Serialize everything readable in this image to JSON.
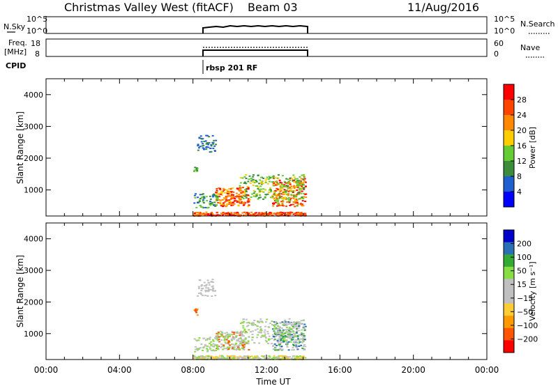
{
  "header": {
    "title": "Christmas Valley West (fitACF)",
    "beam": "Beam 03",
    "date": "11/Aug/2016"
  },
  "noise_panel": {
    "left_label": "N.Sky",
    "right_label": "N.Search",
    "ticks_left": [
      "10^5",
      "10^0"
    ],
    "ticks_right": [
      "10^5",
      "10^0"
    ]
  },
  "freq_panel": {
    "left_label_line1": "Freq.",
    "left_label_line2": "[MHz]",
    "right_label": "Nave",
    "ticks_left": [
      "18",
      "8"
    ],
    "ticks_right": [
      "60",
      "0"
    ]
  },
  "cpid": {
    "label": "CPID",
    "program": "rbsp 201 RF"
  },
  "colors": {
    "power_scale": [
      "#0000ff",
      "#1f5fd0",
      "#3c8c3c",
      "#66cc33",
      "#ffcc00",
      "#ff8800",
      "#ff4400",
      "#ff0000"
    ],
    "velocity_scale": [
      "#ff0000",
      "#ff5500",
      "#ff9900",
      "#ffcc33",
      "#c0c0c0",
      "#c0c0c0",
      "#88dd44",
      "#33aa33",
      "#2b6fb5",
      "#0000cc"
    ]
  },
  "chart_data": [
    {
      "type": "heatmap",
      "name": "power",
      "xlabel": "Time UT",
      "ylabel": "Slant Range [km]",
      "colorbar_label": "Power [dB]",
      "colorbar_ticks": [
        "28",
        "24",
        "20",
        "16",
        "12",
        "8",
        "4"
      ],
      "xlim": [
        0,
        24
      ],
      "ylim": [
        180,
        4500
      ],
      "y_ticks": [
        "4000",
        "3000",
        "2000",
        "1000"
      ],
      "y_tick_values": [
        4000,
        3000,
        2000,
        1000
      ],
      "data_window_hours": [
        8.0,
        14.1
      ]
    },
    {
      "type": "heatmap",
      "name": "velocity",
      "xlabel": "Time UT",
      "ylabel": "Slant Range [km]",
      "colorbar_label": "Velocity [m s⁻¹]",
      "colorbar_ticks": [
        "200",
        "100",
        "50",
        "15",
        "−15",
        "−50",
        "−100",
        "−200"
      ],
      "xlim": [
        0,
        24
      ],
      "ylim": [
        180,
        4500
      ],
      "y_ticks": [
        "4000",
        "3000",
        "2000",
        "1000"
      ],
      "y_tick_values": [
        4000,
        3000,
        2000,
        1000
      ],
      "x_ticks": [
        "00:00",
        "04:00",
        "08:00",
        "12:00",
        "16:00",
        "20:00",
        "00:00"
      ],
      "x_tick_values": [
        0,
        4,
        8,
        12,
        16,
        20,
        24
      ],
      "data_window_hours": [
        8.0,
        14.1
      ]
    }
  ]
}
